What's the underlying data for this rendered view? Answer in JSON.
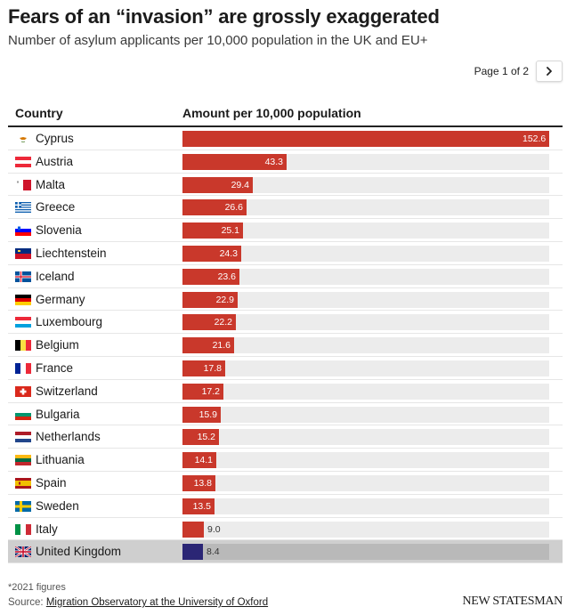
{
  "header": {
    "title": "Fears of an “invasion” are grossly exaggerated",
    "subtitle": "Number of asylum applicants per 10,000 population in the UK and EU+"
  },
  "pager": {
    "label": "Page 1 of 2",
    "next_icon": "chevron-right-icon"
  },
  "table": {
    "col_country": "Country",
    "col_amount": "Amount per 10,000 population"
  },
  "chart_data": {
    "type": "bar",
    "orientation": "horizontal",
    "title": "Fears of an “invasion” are grossly exaggerated",
    "subtitle": "Number of asylum applicants per 10,000 population in the UK and EU+",
    "xlim": [
      0,
      152.6
    ],
    "colors": {
      "default": "#c9382b",
      "highlight": "#2b2675",
      "track": "#ececec"
    },
    "rows": [
      {
        "country": "Cyprus",
        "flag": "cy",
        "value": 152.6,
        "label": "152.6"
      },
      {
        "country": "Austria",
        "flag": "at",
        "value": 43.3,
        "label": "43.3"
      },
      {
        "country": "Malta",
        "flag": "mt",
        "value": 29.4,
        "label": "29.4"
      },
      {
        "country": "Greece",
        "flag": "gr",
        "value": 26.6,
        "label": "26.6"
      },
      {
        "country": "Slovenia",
        "flag": "si",
        "value": 25.1,
        "label": "25.1"
      },
      {
        "country": "Liechtenstein",
        "flag": "li",
        "value": 24.3,
        "label": "24.3"
      },
      {
        "country": "Iceland",
        "flag": "is",
        "value": 23.6,
        "label": "23.6"
      },
      {
        "country": "Germany",
        "flag": "de",
        "value": 22.9,
        "label": "22.9"
      },
      {
        "country": "Luxembourg",
        "flag": "lu",
        "value": 22.2,
        "label": "22.2"
      },
      {
        "country": "Belgium",
        "flag": "be",
        "value": 21.6,
        "label": "21.6"
      },
      {
        "country": "France",
        "flag": "fr",
        "value": 17.8,
        "label": "17.8"
      },
      {
        "country": "Switzerland",
        "flag": "ch",
        "value": 17.2,
        "label": "17.2"
      },
      {
        "country": "Bulgaria",
        "flag": "bg",
        "value": 15.9,
        "label": "15.9"
      },
      {
        "country": "Netherlands",
        "flag": "nl",
        "value": 15.2,
        "label": "15.2"
      },
      {
        "country": "Lithuania",
        "flag": "lt",
        "value": 14.1,
        "label": "14.1"
      },
      {
        "country": "Spain",
        "flag": "es",
        "value": 13.8,
        "label": "13.8"
      },
      {
        "country": "Sweden",
        "flag": "se",
        "value": 13.5,
        "label": "13.5"
      },
      {
        "country": "Italy",
        "flag": "it",
        "value": 9.0,
        "label": "9.0"
      },
      {
        "country": "United Kingdom",
        "flag": "gb",
        "value": 8.4,
        "label": "8.4",
        "highlight": true
      }
    ]
  },
  "footer": {
    "footnote": "*2021 figures",
    "source_prefix": "Source: ",
    "source_link": "Migration Observatory at the University of Oxford",
    "brand": "NEW STATESMAN"
  }
}
